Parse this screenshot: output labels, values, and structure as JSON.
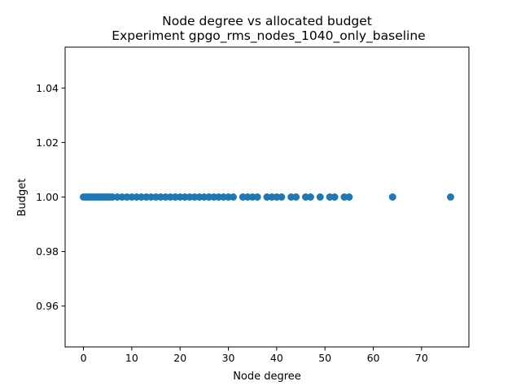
{
  "chart_data": {
    "type": "scatter",
    "title": "Node degree vs allocated budget",
    "subtitle": "Experiment gpgo_rms_nodes_1040_only_baseline",
    "xlabel": "Node degree",
    "ylabel": "Budget",
    "xlim": [
      -3.8,
      79.8
    ],
    "ylim": [
      0.945,
      1.055
    ],
    "xticks": [
      0,
      10,
      20,
      30,
      40,
      50,
      60,
      70
    ],
    "yticks": [
      0.96,
      0.98,
      1.0,
      1.02,
      1.04
    ],
    "ytick_labels": [
      "0.96",
      "0.98",
      "1.00",
      "1.02",
      "1.04"
    ],
    "grid": false,
    "marker_color": "#1f77b4",
    "points": [
      {
        "x": 0,
        "y": 1.0
      },
      {
        "x": 0.5,
        "y": 1.0
      },
      {
        "x": 1,
        "y": 1.0
      },
      {
        "x": 1.5,
        "y": 1.0
      },
      {
        "x": 2,
        "y": 1.0
      },
      {
        "x": 2.5,
        "y": 1.0
      },
      {
        "x": 3,
        "y": 1.0
      },
      {
        "x": 3.5,
        "y": 1.0
      },
      {
        "x": 4,
        "y": 1.0
      },
      {
        "x": 4.5,
        "y": 1.0
      },
      {
        "x": 5,
        "y": 1.0
      },
      {
        "x": 5.5,
        "y": 1.0
      },
      {
        "x": 6,
        "y": 1.0
      },
      {
        "x": 7,
        "y": 1.0
      },
      {
        "x": 8,
        "y": 1.0
      },
      {
        "x": 9,
        "y": 1.0
      },
      {
        "x": 10,
        "y": 1.0
      },
      {
        "x": 11,
        "y": 1.0
      },
      {
        "x": 12,
        "y": 1.0
      },
      {
        "x": 13,
        "y": 1.0
      },
      {
        "x": 14,
        "y": 1.0
      },
      {
        "x": 15,
        "y": 1.0
      },
      {
        "x": 16,
        "y": 1.0
      },
      {
        "x": 17,
        "y": 1.0
      },
      {
        "x": 18,
        "y": 1.0
      },
      {
        "x": 19,
        "y": 1.0
      },
      {
        "x": 20,
        "y": 1.0
      },
      {
        "x": 21,
        "y": 1.0
      },
      {
        "x": 22,
        "y": 1.0
      },
      {
        "x": 23,
        "y": 1.0
      },
      {
        "x": 24,
        "y": 1.0
      },
      {
        "x": 25,
        "y": 1.0
      },
      {
        "x": 26,
        "y": 1.0
      },
      {
        "x": 27,
        "y": 1.0
      },
      {
        "x": 28,
        "y": 1.0
      },
      {
        "x": 29,
        "y": 1.0
      },
      {
        "x": 30,
        "y": 1.0
      },
      {
        "x": 31,
        "y": 1.0
      },
      {
        "x": 33,
        "y": 1.0
      },
      {
        "x": 34,
        "y": 1.0
      },
      {
        "x": 35,
        "y": 1.0
      },
      {
        "x": 36,
        "y": 1.0
      },
      {
        "x": 38,
        "y": 1.0
      },
      {
        "x": 39,
        "y": 1.0
      },
      {
        "x": 40,
        "y": 1.0
      },
      {
        "x": 41,
        "y": 1.0
      },
      {
        "x": 43,
        "y": 1.0
      },
      {
        "x": 44,
        "y": 1.0
      },
      {
        "x": 46,
        "y": 1.0
      },
      {
        "x": 47,
        "y": 1.0
      },
      {
        "x": 49,
        "y": 1.0
      },
      {
        "x": 51,
        "y": 1.0
      },
      {
        "x": 52,
        "y": 1.0
      },
      {
        "x": 54,
        "y": 1.0
      },
      {
        "x": 55,
        "y": 1.0
      },
      {
        "x": 64,
        "y": 1.0
      },
      {
        "x": 76,
        "y": 1.0
      }
    ]
  }
}
